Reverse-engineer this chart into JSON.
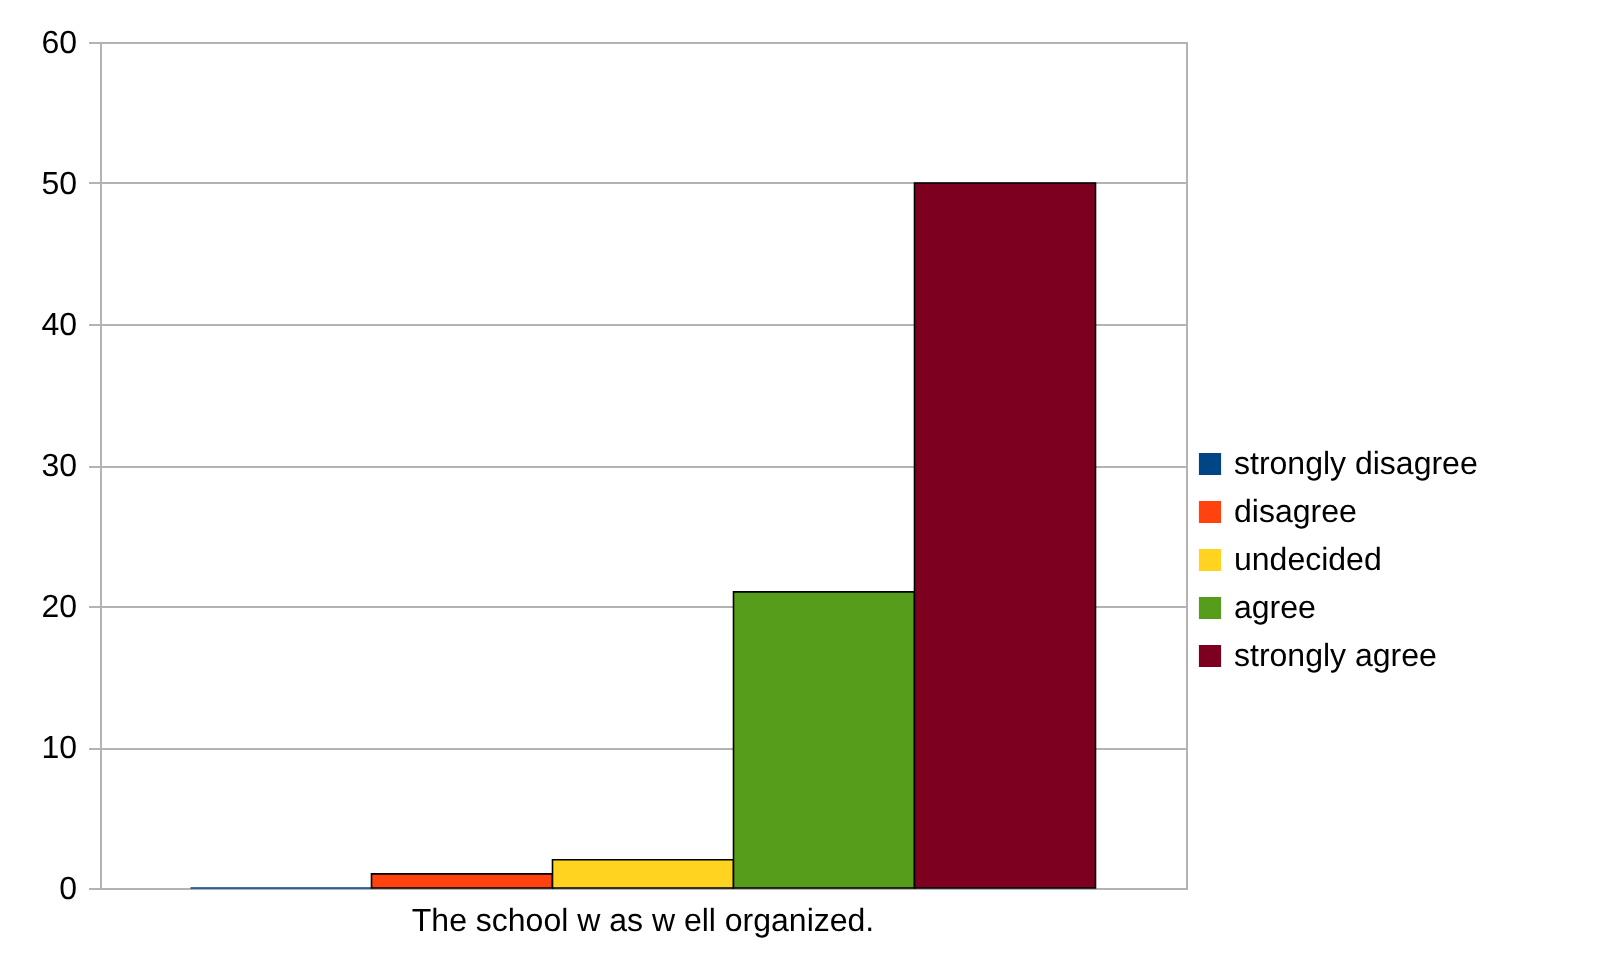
{
  "chart_data": {
    "type": "bar",
    "categories": [
      "The school w as w ell organized."
    ],
    "series": [
      {
        "name": "strongly disagree",
        "color": "#004586",
        "values": [
          0
        ]
      },
      {
        "name": "disagree",
        "color": "#ff420e",
        "values": [
          1
        ]
      },
      {
        "name": "undecided",
        "color": "#ffd320",
        "values": [
          2
        ]
      },
      {
        "name": "agree",
        "color": "#579d1c",
        "values": [
          21
        ]
      },
      {
        "name": "strongly agree",
        "color": "#7e0021",
        "values": [
          50
        ]
      }
    ],
    "ylim": [
      0,
      60
    ],
    "yticks": [
      0,
      10,
      20,
      30,
      40,
      50,
      60
    ],
    "grid": "y",
    "legend": "right"
  }
}
